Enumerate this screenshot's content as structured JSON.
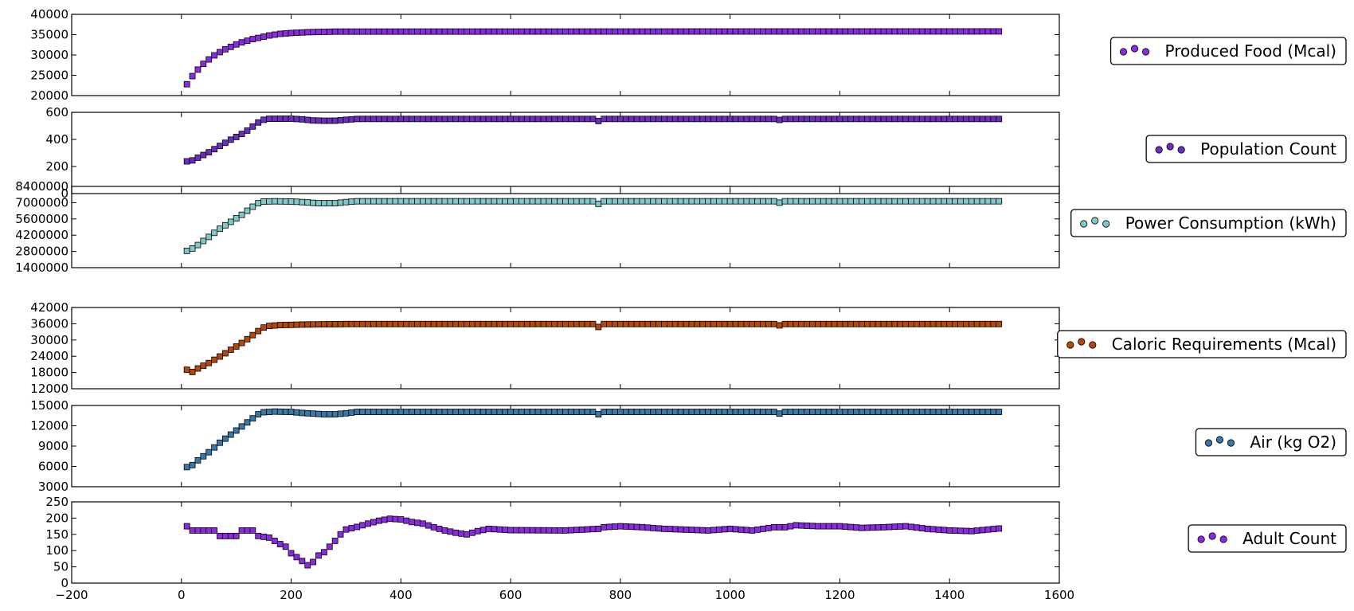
{
  "chart_data": {
    "type": "scatter",
    "shared_x_axis": {
      "xlim": [
        -200,
        1600
      ],
      "ticks": [
        -200,
        0,
        200,
        400,
        600,
        800,
        1000,
        1200,
        1400,
        1600
      ],
      "tick_labels": [
        "−200",
        "0",
        "200",
        "400",
        "600",
        "800",
        "1000",
        "1200",
        "1400",
        "1600"
      ]
    },
    "x_sampling": {
      "start": 10,
      "end": 1490,
      "step": 10
    },
    "legend_placement": "right, outside each panel",
    "grid": false,
    "panels": [
      {
        "series_name": "Produced Food (Mcal)",
        "color": "#8a2be2",
        "ylim": [
          20000,
          40000
        ],
        "y_ticks": [
          20000,
          25000,
          30000,
          35000,
          40000
        ],
        "y_tick_labels": [
          "20000",
          "25000",
          "30000",
          "35000",
          "40000"
        ],
        "profile": [
          [
            10,
            22800
          ],
          [
            20,
            24800
          ],
          [
            30,
            26400
          ],
          [
            40,
            27800
          ],
          [
            50,
            28900
          ],
          [
            60,
            29900
          ],
          [
            70,
            30700
          ],
          [
            80,
            31400
          ],
          [
            90,
            32000
          ],
          [
            100,
            32600
          ],
          [
            110,
            33100
          ],
          [
            120,
            33500
          ],
          [
            130,
            33900
          ],
          [
            140,
            34200
          ],
          [
            150,
            34500
          ],
          [
            160,
            34800
          ],
          [
            170,
            35000
          ],
          [
            180,
            35200
          ],
          [
            200,
            35400
          ],
          [
            230,
            35600
          ],
          [
            280,
            35750
          ],
          [
            1490,
            35800
          ]
        ]
      },
      {
        "series_name": "Population Count",
        "color": "#6a2ec0",
        "ylim": [
          0,
          600
        ],
        "y_ticks": [
          0,
          200,
          400,
          600
        ],
        "y_tick_labels": [
          "0",
          "200",
          "400",
          "600"
        ],
        "profile": [
          [
            10,
            238
          ],
          [
            20,
            245
          ],
          [
            30,
            265
          ],
          [
            40,
            285
          ],
          [
            50,
            305
          ],
          [
            60,
            328
          ],
          [
            70,
            352
          ],
          [
            80,
            375
          ],
          [
            90,
            398
          ],
          [
            100,
            418
          ],
          [
            110,
            440
          ],
          [
            120,
            465
          ],
          [
            130,
            495
          ],
          [
            140,
            525
          ],
          [
            150,
            545
          ],
          [
            160,
            552
          ],
          [
            200,
            553
          ],
          [
            220,
            548
          ],
          [
            240,
            540
          ],
          [
            260,
            538
          ],
          [
            280,
            538
          ],
          [
            300,
            545
          ],
          [
            320,
            551
          ],
          [
            750,
            551
          ],
          [
            760,
            536
          ],
          [
            770,
            551
          ],
          [
            1080,
            551
          ],
          [
            1090,
            544
          ],
          [
            1100,
            551
          ],
          [
            1490,
            551
          ]
        ]
      },
      {
        "series_name": "Power Consumption (kWh)",
        "color": "#80c8c8",
        "ylim": [
          1400000,
          8400000
        ],
        "y_ticks": [
          1400000,
          2800000,
          4200000,
          5600000,
          7000000,
          8400000
        ],
        "y_tick_labels": [
          "1400000",
          "2800000",
          "4200000",
          "5600000",
          "7000000",
          "8400000"
        ],
        "profile": [
          [
            10,
            2850000
          ],
          [
            20,
            3050000
          ],
          [
            30,
            3350000
          ],
          [
            40,
            3700000
          ],
          [
            50,
            4050000
          ],
          [
            60,
            4400000
          ],
          [
            70,
            4750000
          ],
          [
            80,
            5050000
          ],
          [
            90,
            5350000
          ],
          [
            100,
            5650000
          ],
          [
            110,
            5950000
          ],
          [
            120,
            6300000
          ],
          [
            130,
            6650000
          ],
          [
            140,
            6950000
          ],
          [
            150,
            7100000
          ],
          [
            170,
            7120000
          ],
          [
            200,
            7100000
          ],
          [
            220,
            7050000
          ],
          [
            250,
            6950000
          ],
          [
            280,
            6950000
          ],
          [
            300,
            7050000
          ],
          [
            320,
            7120000
          ],
          [
            750,
            7120000
          ],
          [
            760,
            6900000
          ],
          [
            770,
            7120000
          ],
          [
            1080,
            7120000
          ],
          [
            1090,
            7000000
          ],
          [
            1100,
            7120000
          ],
          [
            1490,
            7120000
          ]
        ]
      },
      {
        "series_name": "Caloric Requirements (Mcal)",
        "color": "#b5470b",
        "ylim": [
          12000,
          42000
        ],
        "y_ticks": [
          12000,
          18000,
          24000,
          30000,
          36000,
          42000
        ],
        "y_tick_labels": [
          "12000",
          "18000",
          "24000",
          "30000",
          "36000",
          "42000"
        ],
        "profile": [
          [
            10,
            19000
          ],
          [
            20,
            18200
          ],
          [
            30,
            19500
          ],
          [
            40,
            20500
          ],
          [
            50,
            21500
          ],
          [
            60,
            22700
          ],
          [
            70,
            23900
          ],
          [
            80,
            25100
          ],
          [
            90,
            26400
          ],
          [
            100,
            27600
          ],
          [
            110,
            28900
          ],
          [
            120,
            30300
          ],
          [
            130,
            31800
          ],
          [
            140,
            33300
          ],
          [
            150,
            34600
          ],
          [
            160,
            35200
          ],
          [
            180,
            35500
          ],
          [
            220,
            35700
          ],
          [
            300,
            35900
          ],
          [
            750,
            35900
          ],
          [
            760,
            34800
          ],
          [
            770,
            35900
          ],
          [
            1080,
            35900
          ],
          [
            1090,
            35400
          ],
          [
            1100,
            35900
          ],
          [
            1490,
            35900
          ]
        ]
      },
      {
        "series_name": "Air (kg O2)",
        "color": "#3a78a8",
        "ylim": [
          3000,
          15000
        ],
        "y_ticks": [
          3000,
          6000,
          9000,
          12000,
          15000
        ],
        "y_tick_labels": [
          "3000",
          "6000",
          "9000",
          "12000",
          "15000"
        ],
        "profile": [
          [
            10,
            5900
          ],
          [
            20,
            6200
          ],
          [
            30,
            6900
          ],
          [
            40,
            7500
          ],
          [
            50,
            8100
          ],
          [
            60,
            8800
          ],
          [
            70,
            9500
          ],
          [
            80,
            10100
          ],
          [
            90,
            10700
          ],
          [
            100,
            11300
          ],
          [
            110,
            11900
          ],
          [
            120,
            12500
          ],
          [
            130,
            13100
          ],
          [
            140,
            13700
          ],
          [
            150,
            14000
          ],
          [
            170,
            14100
          ],
          [
            200,
            14050
          ],
          [
            220,
            13900
          ],
          [
            240,
            13800
          ],
          [
            260,
            13700
          ],
          [
            280,
            13700
          ],
          [
            300,
            13850
          ],
          [
            320,
            14050
          ],
          [
            750,
            14050
          ],
          [
            760,
            13700
          ],
          [
            770,
            14050
          ],
          [
            1080,
            14050
          ],
          [
            1090,
            13800
          ],
          [
            1100,
            14050
          ],
          [
            1490,
            14050
          ]
        ]
      },
      {
        "series_name": "Adult Count",
        "color": "#8a2be2",
        "ylim": [
          0,
          250
        ],
        "y_ticks": [
          0,
          50,
          100,
          150,
          200,
          250
        ],
        "y_tick_labels": [
          "0",
          "50",
          "100",
          "150",
          "200",
          "250"
        ],
        "profile": [
          [
            10,
            175
          ],
          [
            20,
            162
          ],
          [
            60,
            162
          ],
          [
            70,
            145
          ],
          [
            100,
            145
          ],
          [
            110,
            162
          ],
          [
            130,
            162
          ],
          [
            140,
            145
          ],
          [
            160,
            140
          ],
          [
            170,
            130
          ],
          [
            180,
            120
          ],
          [
            190,
            112
          ],
          [
            200,
            92
          ],
          [
            210,
            80
          ],
          [
            220,
            68
          ],
          [
            230,
            55
          ],
          [
            240,
            65
          ],
          [
            250,
            85
          ],
          [
            260,
            95
          ],
          [
            270,
            112
          ],
          [
            280,
            130
          ],
          [
            290,
            150
          ],
          [
            300,
            165
          ],
          [
            320,
            173
          ],
          [
            340,
            183
          ],
          [
            360,
            192
          ],
          [
            380,
            198
          ],
          [
            400,
            196
          ],
          [
            420,
            188
          ],
          [
            440,
            183
          ],
          [
            460,
            172
          ],
          [
            480,
            162
          ],
          [
            500,
            155
          ],
          [
            520,
            150
          ],
          [
            540,
            160
          ],
          [
            560,
            167
          ],
          [
            600,
            163
          ],
          [
            700,
            162
          ],
          [
            760,
            167
          ],
          [
            770,
            172
          ],
          [
            800,
            175
          ],
          [
            840,
            172
          ],
          [
            880,
            167
          ],
          [
            960,
            162
          ],
          [
            1000,
            167
          ],
          [
            1040,
            162
          ],
          [
            1080,
            172
          ],
          [
            1100,
            172
          ],
          [
            1120,
            178
          ],
          [
            1160,
            175
          ],
          [
            1200,
            175
          ],
          [
            1240,
            170
          ],
          [
            1280,
            172
          ],
          [
            1320,
            175
          ],
          [
            1360,
            167
          ],
          [
            1400,
            162
          ],
          [
            1440,
            160
          ],
          [
            1490,
            168
          ]
        ]
      }
    ]
  }
}
